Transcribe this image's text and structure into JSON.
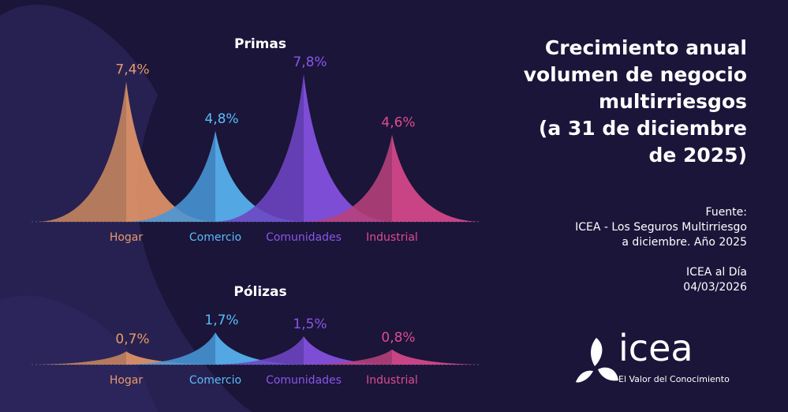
{
  "title": "Crecimiento anual\nvolumen de negocio\nmultirriesgos\n(a 31 de diciembre\nde 2025)",
  "source": {
    "lines": [
      "Fuente:",
      "ICEA - Los Seguros Multirriesgo",
      "a diciembre. Año 2025"
    ],
    "publication": [
      "ICEA al Día",
      "04/03/2026"
    ]
  },
  "logo": {
    "name": "icea",
    "tagline": "El Valor del Conocimiento"
  },
  "colors": {
    "background": "#1a1539",
    "Hogar": "#e99a6a",
    "Comercio": "#5bbcf9",
    "Comunidades": "#8b55ea",
    "Industrial": "#e04b8f"
  },
  "chart_data": [
    {
      "type": "area",
      "title": "Primas",
      "categories": [
        "Hogar",
        "Comercio",
        "Comunidades",
        "Industrial"
      ],
      "values": [
        7.4,
        4.8,
        7.8,
        4.6
      ],
      "data_labels": [
        "7,4%",
        "4,8%",
        "7,8%",
        "4,6%"
      ],
      "unit": "%"
    },
    {
      "type": "area",
      "title": "Pólizas",
      "categories": [
        "Hogar",
        "Comercio",
        "Comunidades",
        "Industrial"
      ],
      "values": [
        0.7,
        1.7,
        1.5,
        0.8
      ],
      "data_labels": [
        "0,7%",
        "1,7%",
        "1,5%",
        "0,8%"
      ],
      "unit": "%"
    }
  ]
}
